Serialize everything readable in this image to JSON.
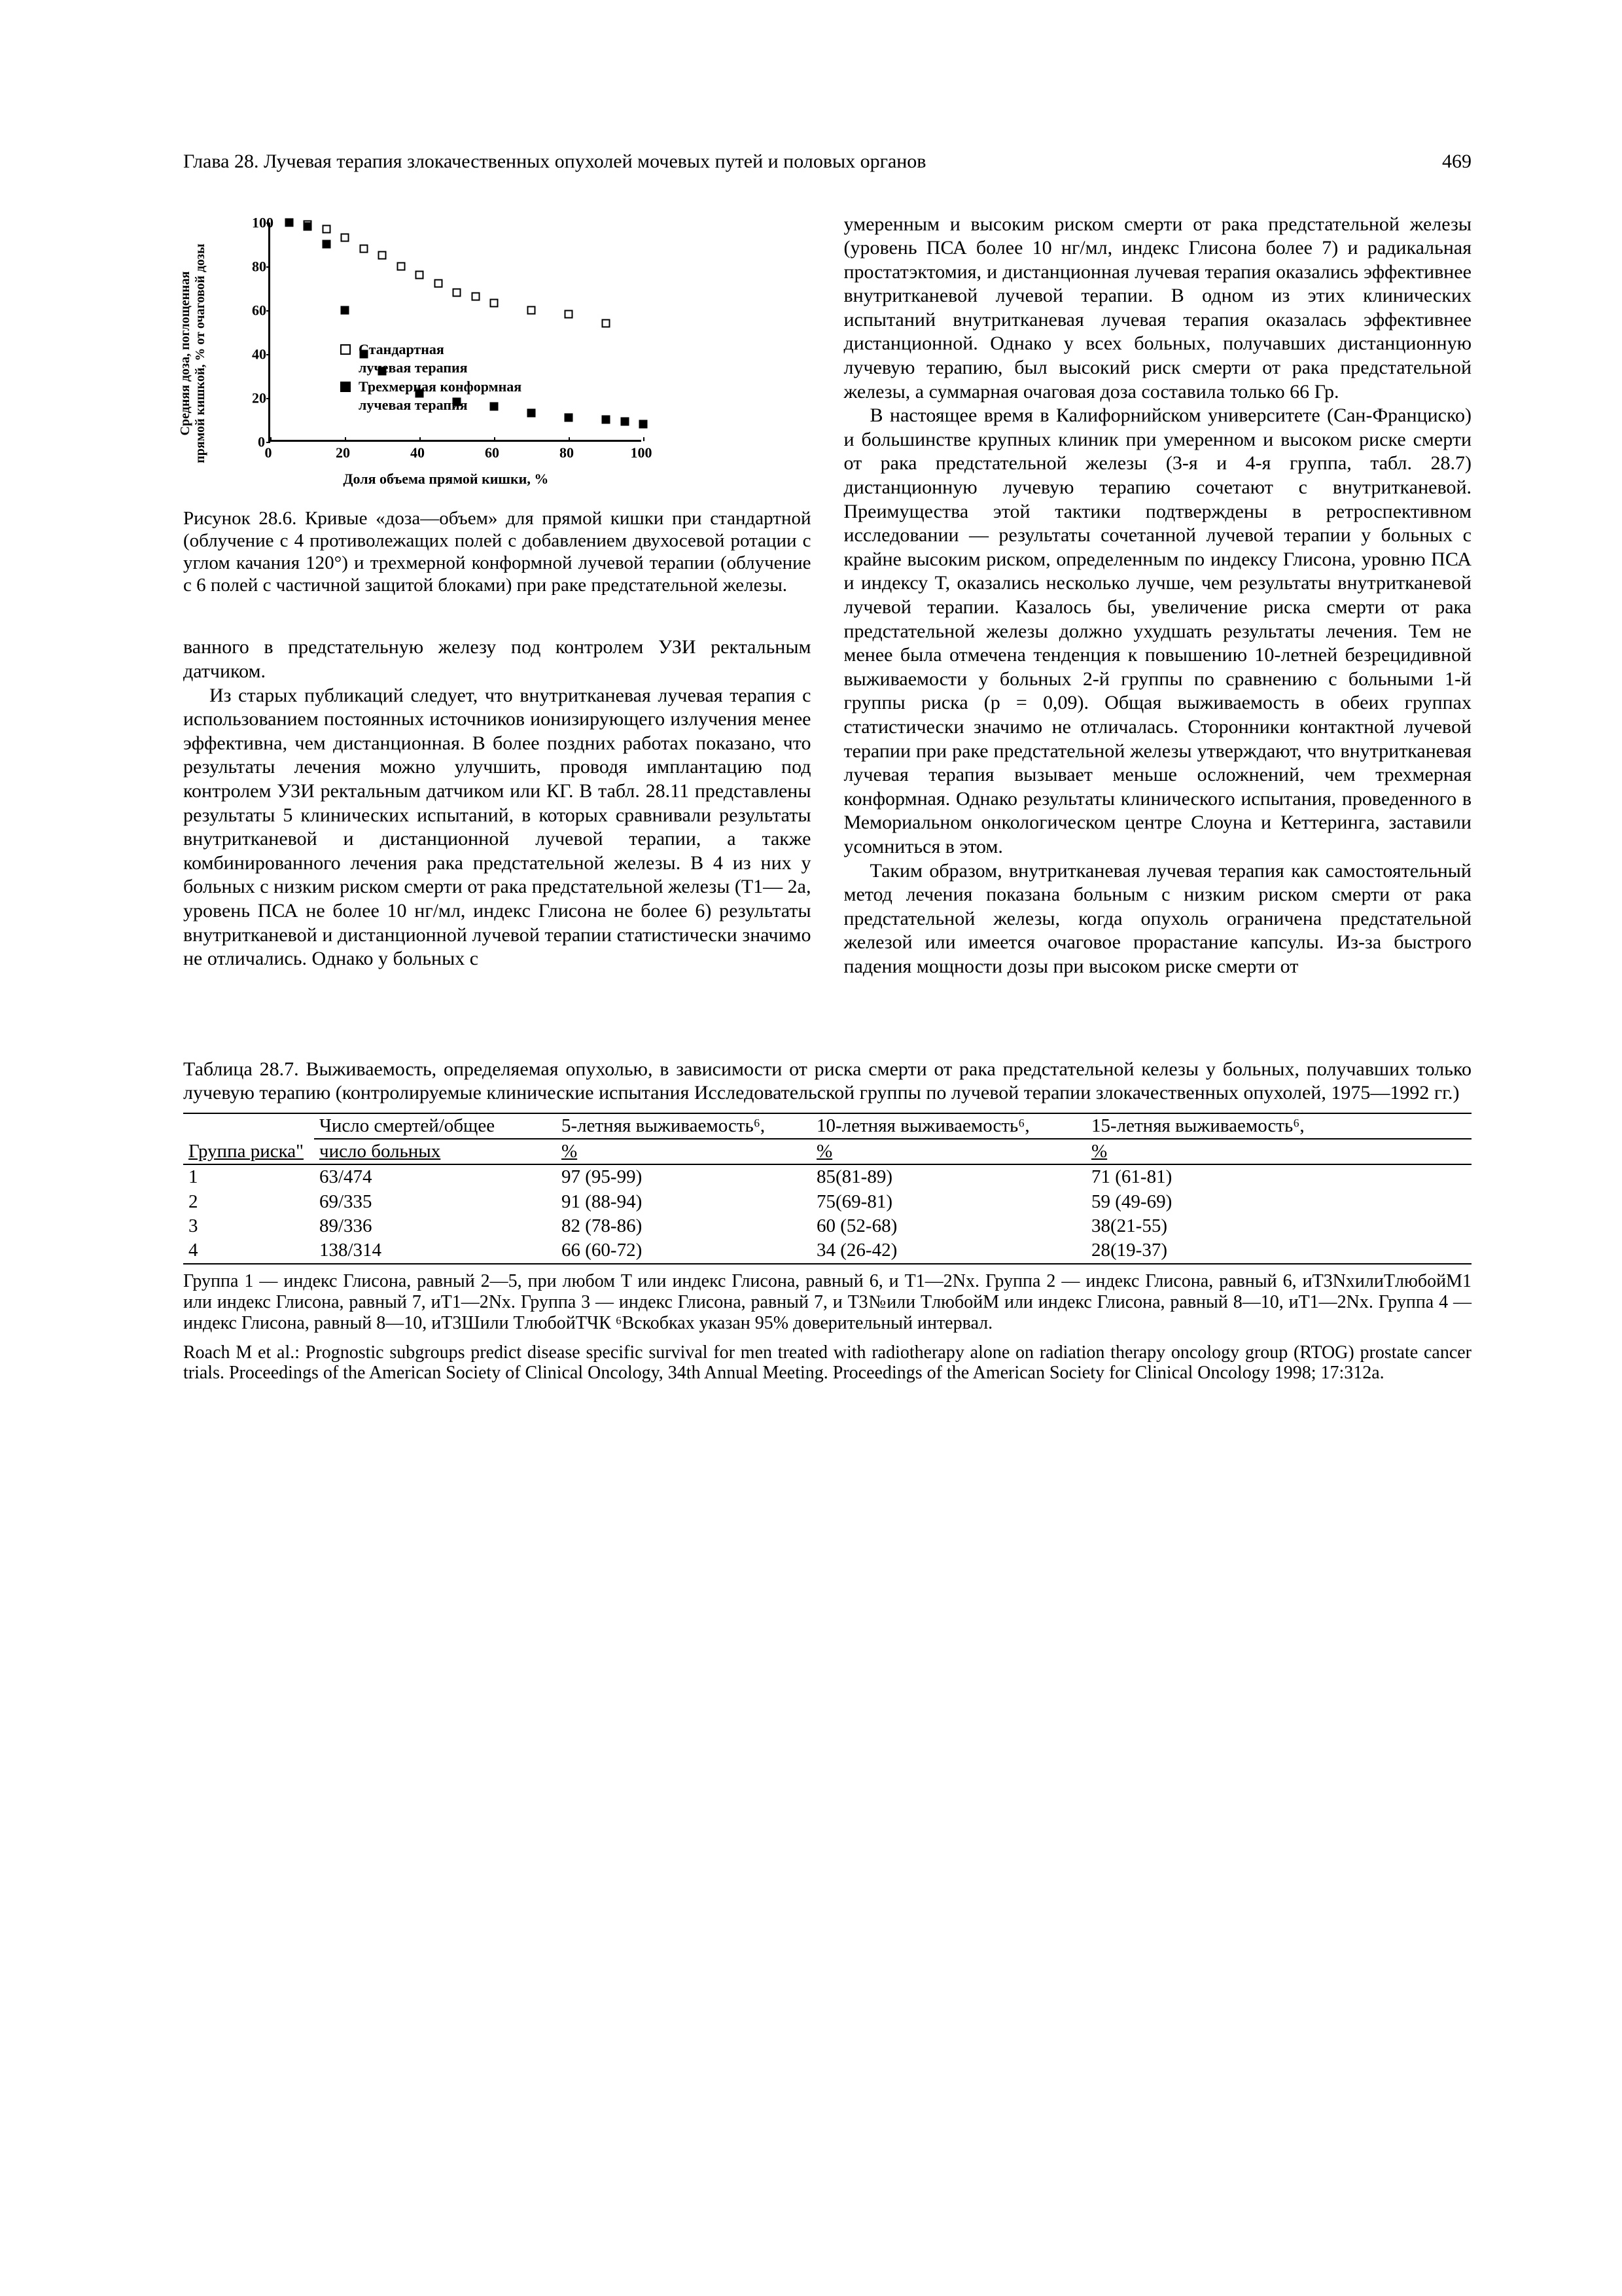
{
  "header": {
    "title": "Глава 28. Лучевая терапия злокачественных опухолей мочевых путей и половых органов",
    "page_number": "469"
  },
  "figure": {
    "type": "scatter",
    "ylabel": "Средняя доза, поглощенная\nпрямой кишкой, % от очаговой дозы",
    "xlabel": "Доля объема прямой кишки, %",
    "ylim": [
      0,
      100
    ],
    "xlim": [
      0,
      100
    ],
    "ytick_step": 20,
    "xtick_step": 20,
    "series": [
      {
        "name": "standard",
        "marker": "open-square",
        "xy": [
          [
            5,
            100
          ],
          [
            10,
            99
          ],
          [
            15,
            97
          ],
          [
            20,
            93
          ],
          [
            25,
            88
          ],
          [
            30,
            85
          ],
          [
            35,
            80
          ],
          [
            40,
            76
          ],
          [
            45,
            72
          ],
          [
            50,
            68
          ],
          [
            55,
            66
          ],
          [
            60,
            63
          ],
          [
            70,
            60
          ],
          [
            80,
            58
          ],
          [
            90,
            54
          ]
        ]
      },
      {
        "name": "conformal",
        "marker": "solid-square",
        "xy": [
          [
            5,
            100
          ],
          [
            10,
            98
          ],
          [
            15,
            90
          ],
          [
            20,
            60
          ],
          [
            25,
            40
          ],
          [
            30,
            32
          ],
          [
            40,
            22
          ],
          [
            50,
            18
          ],
          [
            60,
            16
          ],
          [
            70,
            13
          ],
          [
            80,
            11
          ],
          [
            90,
            10
          ],
          [
            95,
            9
          ],
          [
            100,
            8
          ]
        ]
      }
    ],
    "legend": {
      "open": [
        "Стандартная",
        "лучевая терапия"
      ],
      "solid": [
        "Трехмерная конформная",
        "лучевая терапия"
      ]
    },
    "caption": "Рисунок 28.6. Кривые «доза—объем» для прямой кишки при стандартной (облучение с 4 противолежащих полей с добавлением двухосевой ротации с углом качания 120°) и трехмерной конформной лучевой терапии (облучение с 6 полей с частичной защитой блоками) при раке предстательной железы."
  },
  "left_column": {
    "p1": "ванного в предстательную железу под контролем УЗИ ректальным датчиком.",
    "p2": "Из старых публикаций следует, что внутритканевая лучевая терапия с использованием постоянных источников ионизирующего излучения менее эффективна, чем дистанционная. В более поздних работах показано, что результаты лечения можно улучшить, проводя имплантацию под контролем УЗИ ректальным датчиком или КГ. В табл. 28.11 представлены результаты 5 клинических испытаний, в которых сравнивали результаты внутритканевой и дистанционной лучевой терапии, а также комбинированного лечения рака предстательной железы. В 4 из них у больных с низким риском смерти от рака предстательной железы (T1— 2a, уровень ПСА не более 10 нг/мл, индекс Глисона не более 6) результаты внутритканевой и дистанционной лучевой терапии статистически значимо не отличались. Однако у больных с"
  },
  "right_column": {
    "p1": "умеренным и высоким риском смерти от рака предстательной железы (уровень ПСА более 10 нг/мл, индекс Глисона более 7) и радикальная простатэктомия, и дистанционная лучевая терапия оказались эффективнее внутритканевой лучевой терапии. В одном из этих клинических испытаний внутритканевая лучевая терапия оказалась эффективнее дистанционной. Однако у всех больных, получавших дистанционную лучевую терапию, был высокий риск смерти от рака предстательной железы, а суммарная очаговая доза составила только 66 Гр.",
    "p2": "В настоящее время в Калифорнийском университете (Сан-Франциско) и большинстве крупных клиник при умеренном и высоком риске смерти от рака предстательной железы (3-я и 4-я группа, табл. 28.7) дистанционную лучевую терапию сочетают с внутритканевой. Преимущества этой тактики подтверждены в ретроспективном исследовании — результаты сочетанной лучевой терапии у больных с крайне высоким риском, определенным по индексу Глисона, уровню ПСА и индексу T, оказались несколько лучше, чем результаты внутритканевой лучевой терапии. Казалось бы, увеличение риска смерти от рака предстательной железы должно ухудшать результаты лечения. Тем не менее была отмечена тенденция к повышению 10-летней безрецидивной выживаемости у больных 2-й группы по сравнению с больными 1-й группы риска (p = 0,09). Общая выживаемость в обеих группах статистически значимо не отличалась. Сторонники контактной лучевой терапии при раке предстательной железы утверждают, что внутритканевая лучевая терапия вызывает меньше осложнений, чем трехмерная конформная. Однако результаты клинического испытания, проведенного в Мемориальном онкологическом центре Слоуна и Кеттеринга, заставили усомниться в этом.",
    "p3": "Таким образом, внутритканевая лучевая терапия как самостоятельный метод лечения показана больным с низким риском смерти от рака предстательной железы, когда опухоль ограничена предстательной железой или имеется очаговое прорастание капсулы. Из-за быстрого падения мощности дозы при высоком риске смерти от"
  },
  "table": {
    "caption": "Таблица 28.7. Выживаемость, определяемая опухолью, в зависимости от риска смерти от рака предстательной келезы у больных, получавших только лучевую терапию (контролируемые клинические испытания Исследовательской группы по лучевой терапии злокачественных опухолей, 1975—1992 гг.)",
    "headers": {
      "c0": "Группа риска\"",
      "c1a": "Число смертей/общее",
      "c1b": "число больных",
      "c2a": "5-летняя выживаемость⁶,",
      "c2b": "%",
      "c3a": "10-летняя выживаемость⁶,",
      "c3b": "%",
      "c4a": "15-летняя выживаемость⁶,",
      "c4b": "%"
    },
    "rows": [
      {
        "g": "1",
        "d": "63/474",
        "s5": "97 (95-99)",
        "s10": "85(81-89)",
        "s15": "71 (61-81)"
      },
      {
        "g": "2",
        "d": "69/335",
        "s5": "91 (88-94)",
        "s10": "75(69-81)",
        "s15": "59 (49-69)"
      },
      {
        "g": "3",
        "d": "89/336",
        "s5": "82 (78-86)",
        "s10": "60 (52-68)",
        "s15": "38(21-55)"
      },
      {
        "g": "4",
        "d": "138/314",
        "s5": "66 (60-72)",
        "s10": "34 (26-42)",
        "s15": "28(19-37)"
      }
    ],
    "notes": "Группа 1 — индекс Глисона, равный 2—5, при любом T или индекс Глисона, равный 6, и T1—2Nx. Группа 2 — индекс Глисона, равный 6, иT3NxилиTлюбойM1 или индекс Глисона, равный 7, иT1—2Nx. Группа 3 — индекс Глисона, равный 7, и T3№или TлюбойM или индекс Глисона, равный 8—10, иT1—2Nx. Группа 4 — индекс Глисона, равный 8—10, иT3Шили TлюбойTЧК ⁶Вскобках указан 95% доверительный интервал.",
    "reference": "Roach M et al.: Prognostic subgroups predict disease specific survival for men treated with radiotherapy alone on radiation therapy oncology group (RTOG) prostate cancer trials. Proceedings of the American Society of Clinical Oncology, 34th Annual Meeting. Proceedings of the American Society for Clinical Oncology 1998; 17:312a."
  }
}
